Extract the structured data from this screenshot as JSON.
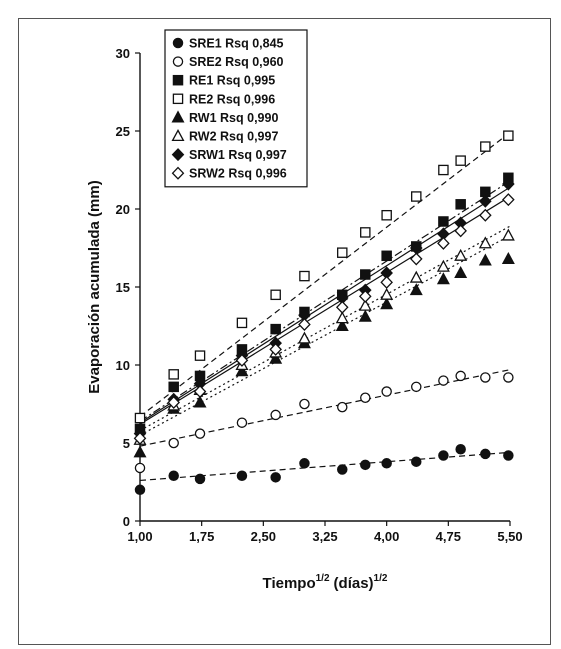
{
  "chart_data": {
    "type": "scatter",
    "title": "",
    "xlabel": "Tiempo",
    "xlabel_sup": "1/2",
    "xlabel_unit": "(días)",
    "xlabel_unit_sup": "1/2",
    "ylabel": "Evaporación acumulada (mm)",
    "xlim": [
      1.0,
      5.5
    ],
    "ylim": [
      0,
      30
    ],
    "x_ticks": [
      1.0,
      1.75,
      2.5,
      3.25,
      4.0,
      4.75,
      5.5
    ],
    "x_tick_labels": [
      "1,00",
      "1,75",
      "2,50",
      "3,25",
      "4,00",
      "4,75",
      "5,50"
    ],
    "y_ticks": [
      0,
      5,
      10,
      15,
      20,
      25,
      30
    ],
    "y_tick_labels": [
      "0",
      "5",
      "10",
      "15",
      "20",
      "25",
      "30"
    ],
    "grid": false,
    "legend_position": "top-left",
    "series": [
      {
        "name": "SRE1 Rsq 0,845",
        "marker": "circle-filled",
        "x": [
          1.0,
          1.41,
          1.73,
          2.24,
          2.65,
          3.0,
          3.46,
          3.74,
          4.0,
          4.36,
          4.69,
          4.9,
          5.2,
          5.48
        ],
        "y": [
          2.0,
          2.9,
          2.7,
          2.9,
          2.8,
          3.7,
          3.3,
          3.6,
          3.7,
          3.8,
          4.2,
          4.6,
          4.3,
          4.2
        ],
        "fit_y": [
          2.6,
          4.4
        ],
        "line_style": "dash"
      },
      {
        "name": "SRE2 Rsq 0,960",
        "marker": "circle-open",
        "x": [
          1.0,
          1.41,
          1.73,
          2.24,
          2.65,
          3.0,
          3.46,
          3.74,
          4.0,
          4.36,
          4.69,
          4.9,
          5.2,
          5.48
        ],
        "y": [
          3.4,
          5.0,
          5.6,
          6.3,
          6.8,
          7.5,
          7.3,
          7.9,
          8.3,
          8.6,
          9.0,
          9.3,
          9.2,
          9.2
        ],
        "fit_y": [
          4.8,
          9.7
        ],
        "line_style": "dash"
      },
      {
        "name": "RE1 Rsq 0,995",
        "marker": "square-filled",
        "x": [
          1.0,
          1.41,
          1.73,
          2.24,
          2.65,
          3.0,
          3.46,
          3.74,
          4.0,
          4.36,
          4.69,
          4.9,
          5.2,
          5.48
        ],
        "y": [
          5.9,
          8.6,
          9.3,
          11.0,
          12.3,
          13.4,
          14.5,
          15.8,
          17.0,
          17.6,
          19.2,
          20.3,
          21.1,
          22.0
        ],
        "fit_y": [
          6.4,
          21.8
        ],
        "line_style": "dashdot"
      },
      {
        "name": "RE2 Rsq 0,996",
        "marker": "square-open",
        "x": [
          1.0,
          1.41,
          1.73,
          2.24,
          2.65,
          3.0,
          3.46,
          3.74,
          4.0,
          4.36,
          4.69,
          4.9,
          5.2,
          5.48
        ],
        "y": [
          6.6,
          9.4,
          10.6,
          12.7,
          14.5,
          15.7,
          17.2,
          18.5,
          19.6,
          20.8,
          22.5,
          23.1,
          24.0,
          24.7
        ],
        "fit_y": [
          6.7,
          24.9
        ],
        "line_style": "dash"
      },
      {
        "name": "RW1 Rsq 0,990",
        "marker": "triangle-filled",
        "x": [
          1.0,
          1.41,
          1.73,
          2.24,
          2.65,
          3.0,
          3.46,
          3.74,
          4.0,
          4.36,
          4.69,
          4.9,
          5.2,
          5.48
        ],
        "y": [
          4.4,
          7.2,
          7.6,
          9.6,
          10.4,
          11.4,
          12.5,
          13.1,
          13.9,
          14.8,
          15.5,
          15.9,
          16.7,
          16.8
        ],
        "fit_y": [
          5.5,
          18.3
        ],
        "line_style": "dot"
      },
      {
        "name": "RW2 Rsq 0,997",
        "marker": "triangle-open",
        "x": [
          1.0,
          1.41,
          1.73,
          2.24,
          2.65,
          3.0,
          3.46,
          3.74,
          4.0,
          4.36,
          4.69,
          4.9,
          5.2,
          5.48
        ],
        "y": [
          5.2,
          7.4,
          8.4,
          10.0,
          10.8,
          11.7,
          13.0,
          13.8,
          14.5,
          15.6,
          16.3,
          17.0,
          17.8,
          18.3
        ],
        "fit_y": [
          5.8,
          18.9
        ],
        "line_style": "dot"
      },
      {
        "name": "SRW1 Rsq 0,997",
        "marker": "diamond-filled",
        "x": [
          1.0,
          1.41,
          1.73,
          2.24,
          2.65,
          3.0,
          3.46,
          3.74,
          4.0,
          4.36,
          4.69,
          4.9,
          5.2,
          5.48
        ],
        "y": [
          5.6,
          7.8,
          8.8,
          10.6,
          11.4,
          13.2,
          14.3,
          14.8,
          15.9,
          17.5,
          18.4,
          19.1,
          20.5,
          21.6
        ],
        "fit_y": [
          6.3,
          21.4
        ],
        "line_style": "solid"
      },
      {
        "name": "SRW2 Rsq 0,996",
        "marker": "diamond-open",
        "x": [
          1.0,
          1.41,
          1.73,
          2.24,
          2.65,
          3.0,
          3.46,
          3.74,
          4.0,
          4.36,
          4.69,
          4.9,
          5.2,
          5.48
        ],
        "y": [
          5.3,
          7.6,
          8.3,
          10.3,
          11.0,
          12.6,
          13.7,
          14.4,
          15.3,
          16.8,
          17.8,
          18.6,
          19.6,
          20.6
        ],
        "fit_y": [
          6.2,
          20.8
        ],
        "line_style": "solid"
      }
    ]
  }
}
